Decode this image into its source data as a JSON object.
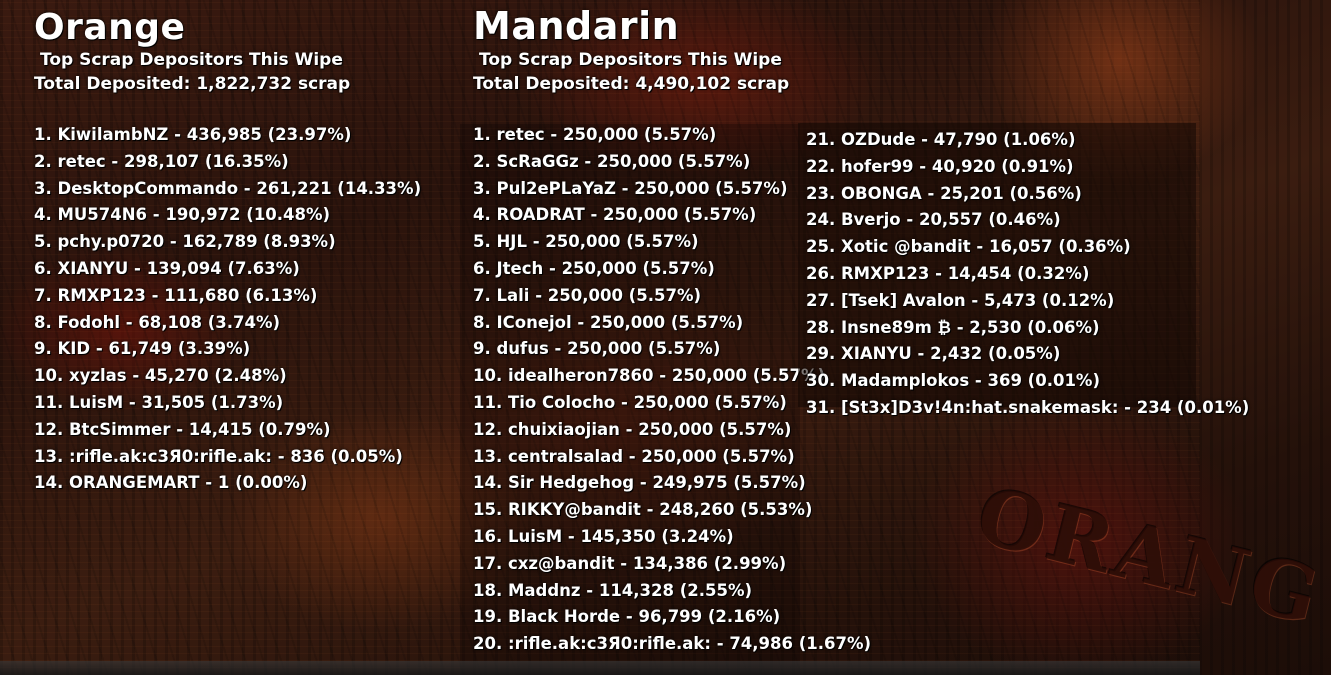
{
  "orange": {
    "title": "Orange",
    "subtitle": "Top Scrap Depositors This Wipe",
    "total": "Total Deposited: 1,822,732 scrap",
    "entries": [
      "1. KiwilambNZ - 436,985 (23.97%)",
      "2. retec - 298,107 (16.35%)",
      "3. DesktopCommando - 261,221 (14.33%)",
      "4. MU574N6 - 190,972 (10.48%)",
      "5. pchy.p0720 - 162,789 (8.93%)",
      "6. XIANYU - 139,094 (7.63%)",
      "7. RMXP123 - 111,680 (6.13%)",
      "8. Fodohl - 68,108 (3.74%)",
      "9. KID - 61,749 (3.39%)",
      "10. xyzlas - 45,270 (2.48%)",
      "11. LuisM - 31,505 (1.73%)",
      "12. BtcSimmer - 14,415 (0.79%)",
      "13. :rifle.ak:c3Я0:rifle.ak: - 836 (0.05%)",
      "14. ORANGEMART - 1 (0.00%)"
    ]
  },
  "mandarin": {
    "title": "Mandarin",
    "subtitle": "Top Scrap Depositors This Wipe",
    "total": "Total Deposited: 4,490,102 scrap",
    "entries": [
      "1. retec - 250,000 (5.57%)",
      "2. ScRaGGz - 250,000 (5.57%)",
      "3. Pul2ePLaYaZ - 250,000 (5.57%)",
      "4. ROADRAT - 250,000 (5.57%)",
      "5. HJL - 250,000 (5.57%)",
      "6. Jtech - 250,000 (5.57%)",
      "7. Lali - 250,000 (5.57%)",
      "8. IConejol - 250,000 (5.57%)",
      "9. dufus - 250,000 (5.57%)",
      "10. idealheron7860 - 250,000 (5.57%)",
      "11. Tio Colocho - 250,000 (5.57%)",
      "12. chuixiaojian - 250,000 (5.57%)",
      "13. centralsalad - 250,000 (5.57%)",
      "14. Sir Hedgehog - 249,975 (5.57%)",
      "15. RIKKY@bandit - 248,260 (5.53%)",
      "16. LuisM - 145,350 (3.24%)",
      "17. cxz@bandit - 134,386 (2.99%)",
      "18. Maddnz - 114,328 (2.55%)",
      "19. Black Horde - 96,799 (2.16%)",
      "20. :rifle.ak:c3Я0:rifle.ak: - 74,986 (1.67%)"
    ],
    "entries_continued": [
      "21. OZDude - 47,790 (1.06%)",
      "22. hofer99 - 40,920 (0.91%)",
      "23. OBONGA - 25,201 (0.56%)",
      "24. Bverjo - 20,557 (0.46%)",
      "25. Xotic @bandit - 16,057 (0.36%)",
      "26. RMXP123 - 14,454 (0.32%)",
      "27. [Tsek] Avalon - 5,473 (0.12%)",
      "28. Insne89m ₿ - 2,530 (0.06%)",
      "29. XIANYU - 2,432 (0.05%)",
      "30. Madamplokos - 369 (0.01%)",
      "31. [St3x]D3v!4n:hat.snakemask: - 234 (0.01%)"
    ]
  },
  "background": {
    "brand_text": "ORANG",
    "base_color": "#2a130c",
    "accent_color": "#8a2a14"
  }
}
